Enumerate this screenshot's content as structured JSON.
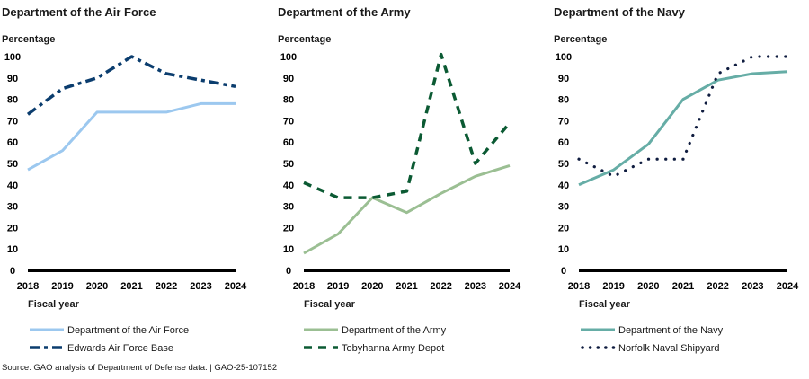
{
  "source_note": "Source: GAO analysis of Department of Defense data.  |  GAO-25-107152",
  "chart_data": [
    {
      "type": "line",
      "title": "Department of the Air Force",
      "ylabel": "Percentage",
      "xlabel": "Fiscal year",
      "x": [
        "2018",
        "2019",
        "2020",
        "2021",
        "2022",
        "2023",
        "2024"
      ],
      "ylim": [
        0,
        100
      ],
      "yticks": [
        0,
        10,
        20,
        30,
        40,
        50,
        60,
        70,
        80,
        90,
        100
      ],
      "grid": false,
      "legend_position": "bottom",
      "series": [
        {
          "name": "Department of the Air Force",
          "style": "solid",
          "color": "#9cc8ef",
          "values": [
            47,
            56,
            74,
            74,
            74,
            78,
            78
          ]
        },
        {
          "name": "Edwards Air Force Base",
          "style": "dash-dot",
          "color": "#0b3d6e",
          "values": [
            73,
            85,
            90,
            100,
            92,
            89,
            86
          ]
        }
      ]
    },
    {
      "type": "line",
      "title": "Department of the Army",
      "ylabel": "Percentage",
      "xlabel": "Fiscal year",
      "x": [
        "2018",
        "2019",
        "2020",
        "2021",
        "2022",
        "2023",
        "2024"
      ],
      "ylim": [
        0,
        100
      ],
      "yticks": [
        0,
        10,
        20,
        30,
        40,
        50,
        60,
        70,
        80,
        90,
        100
      ],
      "grid": false,
      "legend_position": "bottom",
      "series": [
        {
          "name": "Department of the Army",
          "style": "solid",
          "color": "#9bbf93",
          "values": [
            8,
            17,
            34,
            27,
            36,
            44,
            49
          ]
        },
        {
          "name": "Tobyhanna Army Depot",
          "style": "dashed",
          "color": "#0b5a33",
          "values": [
            41,
            34,
            34,
            37,
            101,
            50,
            69
          ]
        }
      ]
    },
    {
      "type": "line",
      "title": "Department of the Navy",
      "ylabel": "Percentage",
      "xlabel": "Fiscal year",
      "x": [
        "2018",
        "2019",
        "2020",
        "2021",
        "2022",
        "2023",
        "2024"
      ],
      "ylim": [
        0,
        100
      ],
      "yticks": [
        0,
        10,
        20,
        30,
        40,
        50,
        60,
        70,
        80,
        90,
        100
      ],
      "grid": false,
      "legend_position": "bottom",
      "series": [
        {
          "name": "Department of the Navy",
          "style": "solid",
          "color": "#66ada6",
          "values": [
            40,
            47,
            59,
            80,
            89,
            92,
            93
          ]
        },
        {
          "name": "Norfolk Naval Shipyard",
          "style": "dotted",
          "color": "#0f1c3f",
          "values": [
            52,
            44,
            52,
            52,
            92,
            100,
            100
          ]
        }
      ]
    }
  ]
}
